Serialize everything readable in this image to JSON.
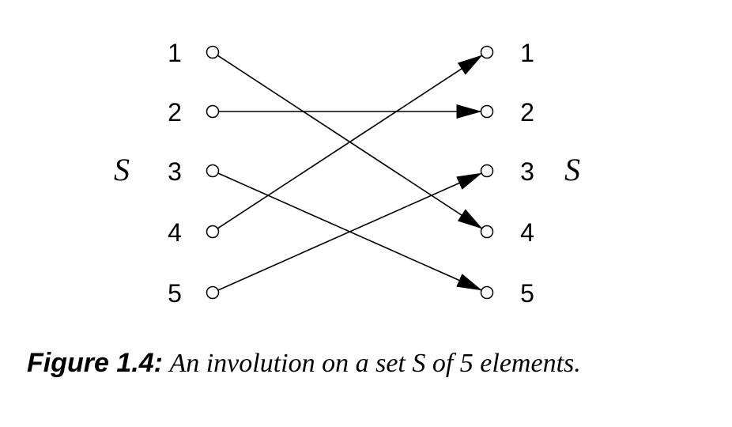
{
  "diagram": {
    "left_set_label": "S",
    "right_set_label": "S",
    "left_elements": [
      "1",
      "2",
      "3",
      "4",
      "5"
    ],
    "right_elements": [
      "1",
      "2",
      "3",
      "4",
      "5"
    ],
    "mapping": [
      {
        "from": "1",
        "to": "4"
      },
      {
        "from": "2",
        "to": "2"
      },
      {
        "from": "3",
        "to": "5"
      },
      {
        "from": "4",
        "to": "1"
      },
      {
        "from": "5",
        "to": "3"
      }
    ]
  },
  "caption": {
    "label": "Figure 1.4:",
    "text": "An involution on a set S of 5 elements."
  }
}
